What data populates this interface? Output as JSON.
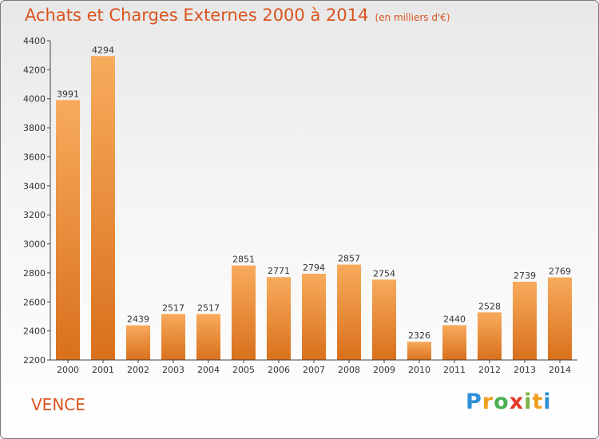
{
  "title": "Achats et Charges Externes 2000 à 2014",
  "subtitle": "(en milliers d'€)",
  "city": "VENCE",
  "logo": {
    "letters": [
      "P",
      "r",
      "o",
      "x",
      "i",
      "t",
      "i"
    ],
    "colors": [
      "#2e8fd6",
      "#f0a020",
      "#4caf50",
      "#e23a2a",
      "#7cb342",
      "#f0a020",
      "#2e8fd6"
    ]
  },
  "colors": {
    "title": "#d9541e",
    "bar_top": "#f7ab5c",
    "bar_bottom": "#d9701c"
  },
  "chart_data": {
    "type": "bar",
    "title": "Achats et Charges Externes 2000 à 2014",
    "subtitle": "(en milliers d'€)",
    "categories": [
      "2000",
      "2001",
      "2002",
      "2003",
      "2004",
      "2005",
      "2006",
      "2007",
      "2008",
      "2009",
      "2010",
      "2011",
      "2012",
      "2013",
      "2014"
    ],
    "values": [
      3991,
      4294,
      2439,
      2517,
      2517,
      2851,
      2771,
      2794,
      2857,
      2754,
      2326,
      2440,
      2528,
      2739,
      2769
    ],
    "ylim": [
      2200,
      4400
    ],
    "yticks": [
      2200,
      2400,
      2600,
      2800,
      3000,
      3200,
      3400,
      3600,
      3800,
      4000,
      4200,
      4400
    ],
    "grid": false,
    "legend": "none"
  }
}
